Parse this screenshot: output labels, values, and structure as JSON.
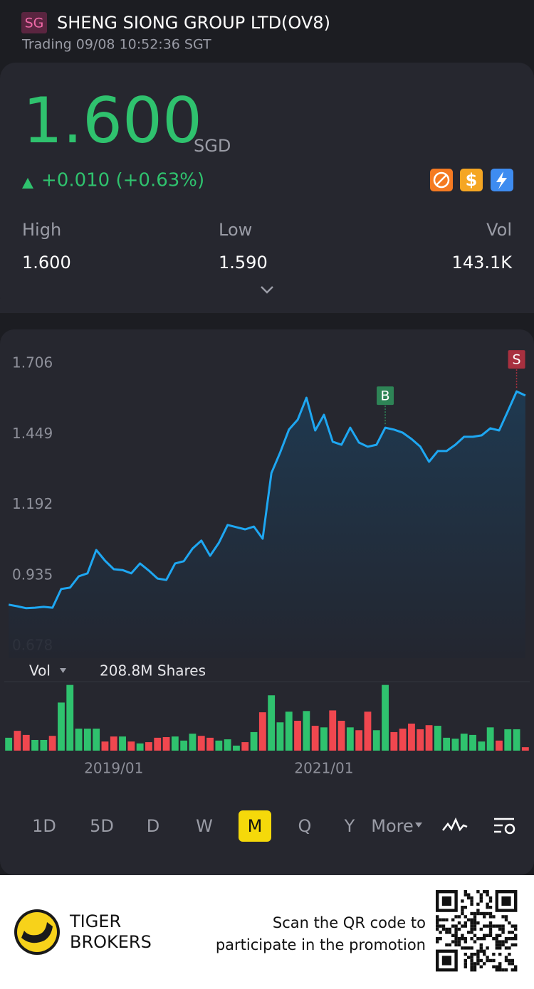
{
  "header": {
    "badge": "SG",
    "title": "SHENG SIONG GROUP LTD(OV8)",
    "status": "Trading 09/08 10:52:36 SGT"
  },
  "quote": {
    "price": "1.600",
    "currency": "SGD",
    "change": "+0.010 (+0.63%)",
    "stats": [
      {
        "label": "High",
        "value": "1.600"
      },
      {
        "label": "Low",
        "value": "1.590"
      },
      {
        "label": "Vol",
        "value": "143.1K"
      }
    ]
  },
  "chart_data": {
    "type": "line",
    "categories": [
      null,
      null,
      null,
      null,
      null,
      null,
      null,
      null,
      null,
      null,
      null,
      null,
      "2019/01",
      null,
      null,
      null,
      null,
      null,
      null,
      null,
      null,
      null,
      null,
      null,
      null,
      null,
      null,
      null,
      null,
      null,
      null,
      null,
      null,
      null,
      null,
      null,
      "2021/01",
      null,
      null,
      null,
      null,
      null,
      null,
      null,
      null,
      null,
      null,
      null,
      null,
      null,
      null,
      null,
      null,
      null,
      null,
      null,
      null,
      null,
      null,
      null
    ],
    "ylim": [
      0.678,
      1.706
    ],
    "yticks": [
      1.706,
      1.449,
      1.192,
      0.935,
      0.678
    ],
    "grid": false,
    "y2lim": [
      0,
      215
    ],
    "series": [
      {
        "name": "Price",
        "color": "#1ea7f2",
        "values": [
          0.839,
          0.833,
          0.826,
          0.828,
          0.831,
          0.828,
          0.896,
          0.901,
          0.942,
          0.953,
          1.038,
          0.999,
          0.968,
          0.965,
          0.953,
          0.989,
          0.963,
          0.934,
          0.929,
          0.989,
          0.997,
          1.043,
          1.072,
          1.017,
          1.064,
          1.129,
          1.121,
          1.113,
          1.123,
          1.079,
          1.318,
          1.393,
          1.476,
          1.512,
          1.592,
          1.473,
          1.53,
          1.432,
          1.421,
          1.483,
          1.429,
          1.414,
          1.421,
          1.483,
          1.476,
          1.465,
          1.442,
          1.414,
          1.359,
          1.398,
          1.398,
          1.421,
          1.45,
          1.45,
          1.455,
          1.481,
          1.473,
          1.543,
          1.615,
          1.6
        ]
      },
      {
        "name": "Vol",
        "type": "bar",
        "axis": "y2",
        "label": "208.8M Shares",
        "values": [
          41,
          63,
          50,
          34,
          34,
          47,
          153,
          209,
          70,
          70,
          70,
          29,
          45,
          45,
          29,
          23,
          27,
          41,
          43,
          45,
          32,
          54,
          47,
          41,
          32,
          36,
          16,
          27,
          59,
          122,
          176,
          90,
          124,
          95,
          126,
          79,
          74,
          128,
          95,
          74,
          65,
          124,
          65,
          209,
          59,
          70,
          86,
          68,
          81,
          79,
          41,
          38,
          54,
          50,
          29,
          74,
          32,
          68,
          68,
          11
        ],
        "colors": [
          "#2fc26e",
          "#f0474f",
          "#f0474f",
          "#2fc26e",
          "#2fc26e",
          "#f0474f",
          "#2fc26e",
          "#2fc26e",
          "#2fc26e",
          "#2fc26e",
          "#2fc26e",
          "#f0474f",
          "#f0474f",
          "#2fc26e",
          "#f0474f",
          "#2fc26e",
          "#f0474f",
          "#f0474f",
          "#f0474f",
          "#2fc26e",
          "#2fc26e",
          "#2fc26e",
          "#f0474f",
          "#f0474f",
          "#2fc26e",
          "#2fc26e",
          "#2fc26e",
          "#f0474f",
          "#2fc26e",
          "#f0474f",
          "#2fc26e",
          "#2fc26e",
          "#2fc26e",
          "#f0474f",
          "#2fc26e",
          "#f0474f",
          "#2fc26e",
          "#f0474f",
          "#f0474f",
          "#2fc26e",
          "#f0474f",
          "#f0474f",
          "#2fc26e",
          "#2fc26e",
          "#f0474f",
          "#f0474f",
          "#f0474f",
          "#f0474f",
          "#f0474f",
          "#2fc26e",
          "#2fc26e",
          "#2fc26e",
          "#2fc26e",
          "#2fc26e",
          "#2fc26e",
          "#2fc26e",
          "#f0474f",
          "#2fc26e",
          "#2fc26e",
          "#f0474f"
        ]
      }
    ],
    "markers": [
      {
        "text": "B",
        "index": 43,
        "color": "#2e8456"
      },
      {
        "text": "S",
        "index": 58,
        "color": "#a8303f"
      }
    ]
  },
  "periods": {
    "items": [
      "1D",
      "5D",
      "D",
      "W",
      "M",
      "Q",
      "Y",
      "More"
    ],
    "selected_index": 4
  },
  "footer": {
    "brand": [
      "TIGER",
      "BROKERS"
    ],
    "promo": [
      "Scan the QR code to",
      "participate in the promotion"
    ]
  }
}
